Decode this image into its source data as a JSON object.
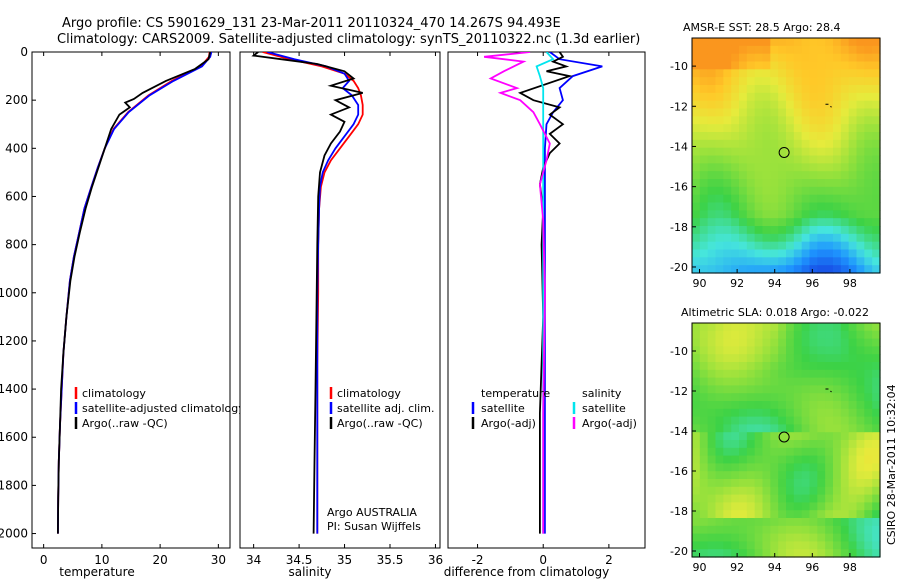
{
  "title_line1": "Argo profile: CS 5901629_131 23-Mar-2011 20110324_470 14.267S 94.493E",
  "title_line2": "Climatology: CARS2009. Satellite-adjusted climatology: synTS_20110322.nc (1.3d earlier)",
  "side_label": "CSIRO 28-Mar-2011 10:32:04",
  "colors": {
    "climatology": "#ff0000",
    "satellite": "#0000ff",
    "argo": "#000000",
    "sal_satellite": "#00e5ee",
    "sal_argo": "#ff00ff"
  },
  "chart_data": [
    {
      "type": "line",
      "xlabel": "temperature",
      "ylabel": "",
      "xlim": [
        -2,
        32
      ],
      "ylim": [
        2060,
        0
      ],
      "xticks": [
        0,
        10,
        20,
        30
      ],
      "yticks": [
        0,
        200,
        400,
        600,
        800,
        1000,
        1200,
        1400,
        1600,
        1800,
        2000
      ],
      "legend": [
        "climatology",
        "satellite-adjusted climatology",
        "Argo(..raw -QC)"
      ],
      "series": [
        {
          "name": "climatology",
          "color": "#ff0000",
          "x": [
            28.5,
            28.4,
            27,
            22,
            18,
            14.5,
            12,
            10.5,
            9.3,
            8.2,
            7,
            6.1,
            5.2,
            4.5,
            3.9,
            3.4,
            3.1,
            2.8,
            2.6,
            2.5,
            2.45
          ],
          "y": [
            0,
            20,
            60,
            120,
            180,
            250,
            320,
            400,
            480,
            560,
            650,
            750,
            850,
            950,
            1100,
            1250,
            1400,
            1550,
            1700,
            1850,
            2000
          ]
        },
        {
          "name": "satellite-adjusted climatology",
          "color": "#0000ff",
          "x": [
            28.8,
            28.6,
            27.2,
            22.3,
            18.2,
            14.6,
            12.1,
            10.5,
            9.3,
            8.2,
            7,
            6.1,
            5.2,
            4.5,
            3.9,
            3.4,
            3.1,
            2.8,
            2.6,
            2.5,
            2.45
          ],
          "y": [
            0,
            20,
            60,
            120,
            180,
            250,
            320,
            400,
            480,
            560,
            650,
            750,
            850,
            950,
            1100,
            1250,
            1400,
            1550,
            1700,
            1850,
            2000
          ]
        },
        {
          "name": "Argo(..raw -QC)",
          "color": "#000000",
          "x": [
            28.6,
            28.3,
            26,
            21,
            17,
            15.5,
            14,
            14.8,
            13,
            11.6,
            10.5,
            9.4,
            8.3,
            7.2,
            6.2,
            5.3,
            4.6,
            3.9,
            3.4,
            3.0,
            2.8,
            2.6,
            2.5,
            2.45
          ],
          "y": [
            0,
            30,
            70,
            120,
            170,
            195,
            210,
            230,
            260,
            320,
            400,
            480,
            560,
            650,
            750,
            850,
            950,
            1100,
            1250,
            1400,
            1550,
            1700,
            1850,
            2000
          ]
        }
      ]
    },
    {
      "type": "line",
      "xlabel": "salinity",
      "xlim": [
        33.85,
        36.05
      ],
      "ylim": [
        2060,
        0
      ],
      "xticks": [
        34,
        34.5,
        35,
        35.5,
        36
      ],
      "legend": [
        "climatology",
        "satellite adj. clim.",
        "Argo(..raw -QC)"
      ],
      "annotations": [
        "Argo AUSTRALIA",
        "PI: Susan Wijffels"
      ],
      "series": [
        {
          "name": "climatology",
          "color": "#ff0000",
          "x": [
            34.1,
            34.4,
            34.75,
            35.0,
            35.1,
            35.15,
            35.18,
            35.2,
            35.2,
            35.15,
            35.05,
            34.95,
            34.85,
            34.78,
            34.74,
            34.72,
            34.71,
            34.71,
            34.7,
            34.7,
            34.7
          ],
          "y": [
            0,
            30,
            60,
            90,
            120,
            150,
            180,
            220,
            260,
            300,
            350,
            400,
            450,
            500,
            560,
            650,
            800,
            1000,
            1300,
            1600,
            2000
          ]
        },
        {
          "name": "satellite adj. clim.",
          "color": "#0000ff",
          "x": [
            34.15,
            34.45,
            34.8,
            35.0,
            35.05,
            34.98,
            35.08,
            35.15,
            35.15,
            35.1,
            35.0,
            34.9,
            34.82,
            34.76,
            34.73,
            34.72,
            34.71,
            34.7,
            34.7,
            34.7,
            34.7
          ],
          "y": [
            0,
            30,
            60,
            90,
            120,
            150,
            180,
            220,
            260,
            300,
            350,
            400,
            450,
            500,
            560,
            650,
            800,
            1000,
            1300,
            1600,
            2000
          ]
        },
        {
          "name": "Argo(..raw -QC)",
          "color": "#000000",
          "x": [
            34.05,
            34.0,
            34.3,
            34.7,
            35.0,
            35.1,
            34.85,
            35.2,
            34.9,
            35.05,
            34.85,
            35.0,
            34.95,
            34.85,
            34.78,
            34.73,
            34.71,
            34.7,
            34.69,
            34.68,
            34.67,
            34.66
          ],
          "y": [
            0,
            15,
            30,
            50,
            80,
            110,
            140,
            170,
            200,
            230,
            260,
            290,
            330,
            380,
            430,
            500,
            600,
            800,
            1100,
            1400,
            1700,
            2000
          ]
        }
      ]
    },
    {
      "type": "line",
      "xlabel": "difference from climatology",
      "xlim": [
        -2.9,
        3.1
      ],
      "ylim": [
        2060,
        0
      ],
      "xticks": [
        -2,
        0,
        2
      ],
      "legend": [
        "temperature",
        "satellite",
        "Argo(-adj)",
        "salinity",
        "satellite",
        "Argo(-adj)"
      ],
      "series": [
        {
          "name": "temperature satellite",
          "color": "#0000ff",
          "x": [
            0.2,
            0.5,
            1.8,
            0.9,
            0.5,
            0.6,
            0.3,
            0.1,
            0.05,
            0.05,
            0.05,
            0.05,
            0.05
          ],
          "y": [
            0,
            30,
            60,
            100,
            150,
            200,
            250,
            300,
            400,
            600,
            1000,
            1500,
            2000
          ]
        },
        {
          "name": "temperature Argo(-adj)",
          "color": "#000000",
          "x": [
            0.5,
            0.6,
            0.3,
            0.7,
            0.1,
            0.8,
            -0.7,
            -0.3,
            0.5,
            0.2,
            0.6,
            0.2,
            0.5,
            0.2,
            0.0,
            -0.1,
            0.0,
            -0.05,
            0.0,
            -0.1,
            -0.1
          ],
          "y": [
            0,
            20,
            40,
            60,
            80,
            100,
            170,
            200,
            230,
            260,
            300,
            340,
            380,
            420,
            480,
            550,
            650,
            800,
            1100,
            1500,
            2000
          ]
        },
        {
          "name": "salinity satellite",
          "color": "#00e5ee",
          "x": [
            0.1,
            0.3,
            -0.2,
            -0.1,
            0.0,
            0.0,
            0.0,
            0.0,
            0.0,
            0.0,
            0.0,
            0.0
          ],
          "y": [
            0,
            30,
            60,
            100,
            150,
            200,
            300,
            500,
            800,
            1200,
            1600,
            2000
          ]
        },
        {
          "name": "salinity Argo(-adj)",
          "color": "#ff00ff",
          "x": [
            -0.4,
            -1.8,
            -0.6,
            -1.2,
            -1.6,
            -0.8,
            -1.3,
            -0.7,
            -0.3,
            -0.1,
            0.2,
            0.1,
            -0.1,
            0.0,
            0.05,
            0.0,
            0.0
          ],
          "y": [
            0,
            20,
            40,
            80,
            110,
            150,
            170,
            200,
            250,
            300,
            380,
            450,
            550,
            700,
            1000,
            1500,
            2000
          ]
        }
      ]
    },
    {
      "type": "heatmap",
      "title": "AMSR-E SST: 28.5 Argo: 28.4",
      "xlim": [
        89.6,
        99.6
      ],
      "ylim": [
        -20.3,
        -8.6
      ],
      "xticks": [
        90,
        92,
        94,
        96,
        98
      ],
      "yticks": [
        -20,
        -18,
        -16,
        -14,
        -12,
        -10
      ],
      "marker": {
        "x": 94.5,
        "y": -14.3
      }
    },
    {
      "type": "heatmap",
      "title": "Altimetric SLA: 0.018 Argo: -0.022",
      "xlim": [
        89.6,
        99.6
      ],
      "ylim": [
        -20.3,
        -8.6
      ],
      "xticks": [
        90,
        92,
        94,
        96,
        98
      ],
      "yticks": [
        -20,
        -18,
        -16,
        -14,
        -12,
        -10
      ],
      "marker": {
        "x": 94.5,
        "y": -14.3
      }
    }
  ]
}
